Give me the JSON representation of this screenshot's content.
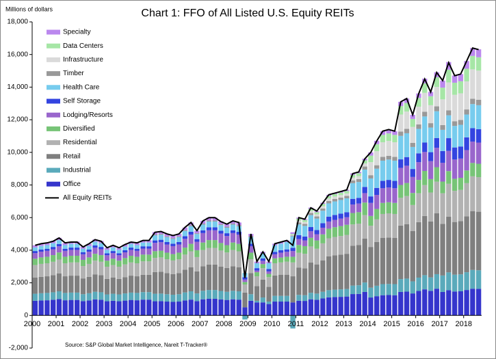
{
  "chart_data": {
    "type": "bar",
    "stacked": true,
    "title": "Chart 1: FFO of All Listed U.S. Equity REITs",
    "y_label": "Millions of dollars",
    "source": "Source: S&P Global Market Intelligence, Nareit T-Tracker®",
    "legend": "upper left",
    "grid": false,
    "ylim": [
      -2000,
      18000
    ],
    "yticks": [
      {
        "value": -2000,
        "label": "-2,000"
      },
      0,
      {
        "value": 2000,
        "label": "2,000"
      },
      {
        "value": 4000,
        "label": "4,000"
      },
      {
        "value": 6000,
        "label": "6,000"
      },
      {
        "value": 8000,
        "label": "8,000"
      },
      {
        "value": 10000,
        "label": "10,000"
      },
      {
        "value": 12000,
        "label": "12,000"
      },
      {
        "value": 14000,
        "label": "14,000"
      },
      {
        "value": 16000,
        "label": "16,000"
      },
      {
        "value": 18000,
        "label": "18,000"
      }
    ],
    "categories": [
      "2000",
      null,
      null,
      null,
      "2001",
      null,
      null,
      null,
      "2002",
      null,
      null,
      null,
      "2003",
      null,
      null,
      null,
      "2004",
      null,
      null,
      null,
      "2005",
      null,
      null,
      null,
      "2006",
      null,
      null,
      null,
      "2007",
      null,
      null,
      null,
      "2008",
      null,
      null,
      null,
      "2009",
      null,
      null,
      null,
      "2010",
      null,
      null,
      null,
      "2011",
      null,
      null,
      null,
      "2012",
      null,
      null,
      null,
      "2013",
      null,
      null,
      null,
      "2014",
      null,
      null,
      null,
      "2015",
      null,
      null,
      null,
      "2016",
      null,
      null,
      null,
      "2017",
      null,
      null,
      null,
      "2018",
      null,
      null
    ],
    "series": [
      {
        "name": "Office",
        "color": "#3535cc",
        "values": [
          900,
          920,
          930,
          960,
          1000,
          930,
          950,
          950,
          880,
          920,
          980,
          960,
          870,
          900,
          870,
          910,
          950,
          930,
          970,
          970,
          870,
          880,
          850,
          830,
          850,
          920,
          970,
          880,
          990,
          1020,
          1020,
          980,
          950,
          990,
          970,
          500,
          900,
          800,
          800,
          700,
          850,
          850,
          850,
          800,
          900,
          890,
          990,
          960,
          1040,
          1110,
          1130,
          1140,
          1160,
          1310,
          1320,
          1440,
          1100,
          1180,
          1240,
          1250,
          1240,
          1440,
          1460,
          1350,
          1500,
          1600,
          1510,
          1640,
          1440,
          1550,
          1470,
          1480,
          1560,
          1640,
          1630
        ]
      },
      {
        "name": "Industrial",
        "color": "#5aaabb",
        "values": [
          430,
          440,
          450,
          460,
          480,
          450,
          450,
          450,
          420,
          440,
          470,
          460,
          420,
          430,
          420,
          440,
          450,
          450,
          460,
          460,
          460,
          460,
          450,
          440,
          450,
          490,
          510,
          470,
          520,
          540,
          540,
          520,
          500,
          520,
          510,
          -250,
          400,
          100,
          300,
          150,
          350,
          350,
          350,
          -800,
          360,
          350,
          400,
          380,
          410,
          440,
          450,
          460,
          460,
          520,
          530,
          580,
          600,
          640,
          680,
          680,
          680,
          790,
          800,
          740,
          820,
          870,
          820,
          890,
          1010,
          1090,
          1030,
          1040,
          1090,
          1150,
          1140
        ]
      },
      {
        "name": "Retail",
        "color": "#7f7f7f",
        "values": [
          990,
          1010,
          1020,
          1050,
          1090,
          1020,
          1040,
          1040,
          970,
          1010,
          1070,
          1050,
          950,
          990,
          950,
          1000,
          1040,
          1020,
          1060,
          1060,
          1330,
          1340,
          1300,
          1270,
          1300,
          1400,
          1480,
          1350,
          1510,
          1560,
          1560,
          1500,
          1460,
          1510,
          1480,
          900,
          1300,
          900,
          1100,
          900,
          1250,
          1300,
          1300,
          1600,
          1680,
          1650,
          1850,
          1790,
          1930,
          2070,
          2100,
          2130,
          2160,
          2440,
          2460,
          2690,
          2500,
          2680,
          2830,
          2850,
          2830,
          3280,
          3330,
          3080,
          3400,
          3630,
          3430,
          3730,
          3170,
          3410,
          3230,
          3260,
          3430,
          3610,
          3590
        ]
      },
      {
        "name": "Residential",
        "color": "#b2b2b2",
        "values": [
          770,
          790,
          800,
          820,
          860,
          800,
          810,
          810,
          760,
          790,
          840,
          820,
          750,
          770,
          750,
          780,
          810,
          800,
          830,
          830,
          870,
          880,
          850,
          830,
          850,
          920,
          970,
          880,
          990,
          1020,
          1020,
          980,
          950,
          990,
          970,
          500,
          850,
          600,
          700,
          600,
          750,
          750,
          800,
          850,
          900,
          890,
          990,
          960,
          1040,
          1110,
          1130,
          1140,
          1160,
          1310,
          1320,
          1440,
          1300,
          1390,
          1470,
          1480,
          1470,
          1700,
          1730,
          1600,
          1770,
          1890,
          1780,
          1940,
          1870,
          2020,
          1910,
          1920,
          2030,
          2130,
          2120
        ]
      },
      {
        "name": "Diversified",
        "color": "#77c477",
        "values": [
          390,
          400,
          400,
          410,
          430,
          400,
          410,
          410,
          380,
          400,
          420,
          410,
          370,
          390,
          370,
          390,
          410,
          400,
          410,
          410,
          410,
          410,
          400,
          390,
          400,
          430,
          460,
          420,
          460,
          480,
          480,
          460,
          450,
          460,
          460,
          150,
          400,
          250,
          250,
          200,
          300,
          300,
          300,
          350,
          480,
          470,
          530,
          510,
          550,
          590,
          600,
          610,
          620,
          700,
          700,
          770,
          600,
          640,
          680,
          680,
          680,
          790,
          800,
          740,
          820,
          870,
          820,
          890,
          720,
          780,
          740,
          740,
          780,
          820,
          820
        ]
      },
      {
        "name": "Lodging/Resorts",
        "color": "#9966cc",
        "values": [
          340,
          350,
          360,
          360,
          380,
          360,
          360,
          360,
          340,
          350,
          370,
          360,
          330,
          340,
          330,
          350,
          360,
          360,
          370,
          370,
          510,
          520,
          500,
          490,
          500,
          540,
          570,
          520,
          580,
          600,
          600,
          580,
          560,
          580,
          570,
          150,
          400,
          100,
          200,
          150,
          250,
          300,
          300,
          350,
          360,
          350,
          400,
          380,
          410,
          440,
          450,
          460,
          460,
          520,
          530,
          580,
          800,
          860,
          900,
          910,
          900,
          1050,
          1060,
          980,
          1090,
          1160,
          1100,
          1190,
          1150,
          1240,
          1180,
          1180,
          1250,
          1310,
          1300
        ]
      },
      {
        "name": "Self Storage",
        "color": "#3344e0",
        "values": [
          130,
          130,
          130,
          140,
          140,
          130,
          140,
          140,
          130,
          130,
          140,
          140,
          120,
          130,
          120,
          130,
          140,
          130,
          140,
          140,
          150,
          150,
          150,
          150,
          150,
          160,
          170,
          160,
          170,
          180,
          180,
          170,
          170,
          170,
          170,
          150,
          150,
          150,
          150,
          150,
          150,
          150,
          150,
          200,
          240,
          240,
          260,
          260,
          280,
          300,
          300,
          300,
          310,
          350,
          350,
          380,
          400,
          430,
          450,
          460,
          450,
          520,
          530,
          490,
          540,
          580,
          550,
          600,
          720,
          780,
          740,
          740,
          780,
          820,
          820
        ]
      },
      {
        "name": "Health Care",
        "color": "#77ccee",
        "values": [
          220,
          220,
          220,
          230,
          240,
          220,
          230,
          230,
          210,
          220,
          230,
          230,
          210,
          220,
          210,
          220,
          230,
          220,
          230,
          230,
          310,
          310,
          300,
          290,
          300,
          320,
          340,
          310,
          350,
          360,
          360,
          350,
          340,
          350,
          340,
          250,
          400,
          300,
          300,
          350,
          400,
          400,
          450,
          700,
          660,
          650,
          730,
          700,
          760,
          810,
          830,
          840,
          850,
          960,
          970,
          1060,
          1100,
          1180,
          1240,
          1250,
          1240,
          1440,
          1460,
          1350,
          1500,
          1600,
          1510,
          1640,
          1300,
          1400,
          1320,
          1330,
          1400,
          1480,
          1470
        ]
      },
      {
        "name": "Timber",
        "color": "#999999",
        "values": [
          0,
          0,
          0,
          0,
          0,
          0,
          0,
          0,
          0,
          0,
          0,
          0,
          0,
          0,
          0,
          0,
          0,
          0,
          0,
          0,
          50,
          50,
          50,
          50,
          50,
          50,
          60,
          50,
          60,
          60,
          60,
          60,
          60,
          60,
          60,
          0,
          50,
          0,
          0,
          0,
          0,
          0,
          0,
          50,
          120,
          120,
          130,
          130,
          140,
          150,
          150,
          150,
          150,
          170,
          180,
          190,
          200,
          210,
          230,
          230,
          230,
          260,
          270,
          250,
          270,
          290,
          270,
          300,
          290,
          310,
          290,
          300,
          310,
          330,
          330
        ]
      },
      {
        "name": "Infrastructure",
        "color": "#dadada",
        "values": [
          0,
          0,
          0,
          0,
          0,
          0,
          0,
          0,
          0,
          0,
          0,
          0,
          0,
          0,
          0,
          0,
          0,
          0,
          0,
          0,
          0,
          0,
          0,
          0,
          0,
          0,
          0,
          0,
          0,
          0,
          0,
          0,
          0,
          0,
          0,
          0,
          0,
          0,
          0,
          0,
          0,
          0,
          0,
          50,
          120,
          120,
          130,
          130,
          140,
          150,
          150,
          150,
          150,
          170,
          180,
          190,
          800,
          860,
          900,
          910,
          900,
          1050,
          1060,
          980,
          1090,
          1160,
          1100,
          1190,
          1580,
          1710,
          1620,
          1630,
          1720,
          1800,
          1790
        ]
      },
      {
        "name": "Data Centers",
        "color": "#a6e6a6",
        "values": [
          0,
          0,
          0,
          0,
          0,
          0,
          0,
          0,
          0,
          0,
          0,
          0,
          0,
          0,
          0,
          0,
          0,
          0,
          0,
          0,
          0,
          0,
          0,
          0,
          0,
          0,
          0,
          0,
          0,
          0,
          0,
          0,
          0,
          0,
          0,
          0,
          0,
          0,
          0,
          0,
          0,
          0,
          0,
          50,
          120,
          120,
          130,
          130,
          140,
          150,
          150,
          150,
          150,
          170,
          180,
          190,
          400,
          430,
          450,
          460,
          450,
          520,
          530,
          490,
          540,
          580,
          550,
          600,
          720,
          780,
          740,
          740,
          780,
          820,
          820
        ]
      },
      {
        "name": "Specialty",
        "color": "#bb88ee",
        "values": [
          130,
          130,
          130,
          140,
          140,
          130,
          140,
          140,
          130,
          130,
          140,
          140,
          120,
          130,
          120,
          130,
          140,
          130,
          140,
          140,
          150,
          150,
          150,
          150,
          150,
          160,
          170,
          160,
          170,
          180,
          180,
          170,
          170,
          170,
          170,
          0,
          150,
          100,
          100,
          100,
          100,
          100,
          100,
          100,
          60,
          60,
          70,
          60,
          70,
          70,
          80,
          80,
          80,
          90,
          90,
          100,
          200,
          210,
          230,
          230,
          230,
          260,
          270,
          250,
          270,
          290,
          270,
          300,
          430,
          470,
          440,
          440,
          470,
          490,
          490
        ]
      },
      {
        "name": "All Equity REITs",
        "color": "#000000",
        "type": "line",
        "values": [
          4300,
          4400,
          4450,
          4550,
          4750,
          4450,
          4500,
          4500,
          4200,
          4400,
          4650,
          4550,
          4150,
          4300,
          4150,
          4350,
          4500,
          4450,
          4600,
          4600,
          5100,
          5150,
          5000,
          4900,
          5000,
          5400,
          5700,
          5200,
          5800,
          6000,
          6000,
          5750,
          5600,
          5800,
          5700,
          2300,
          5000,
          3300,
          3900,
          3300,
          4400,
          4500,
          4600,
          4300,
          6000,
          5900,
          6600,
          6400,
          6900,
          7400,
          7500,
          7600,
          7700,
          8700,
          8800,
          9600,
          10000,
          10700,
          11300,
          11400,
          11300,
          13100,
          13300,
          12300,
          13600,
          14500,
          13700,
          14900,
          14400,
          15500,
          14700,
          14800,
          15600,
          16400,
          16300
        ]
      }
    ]
  }
}
